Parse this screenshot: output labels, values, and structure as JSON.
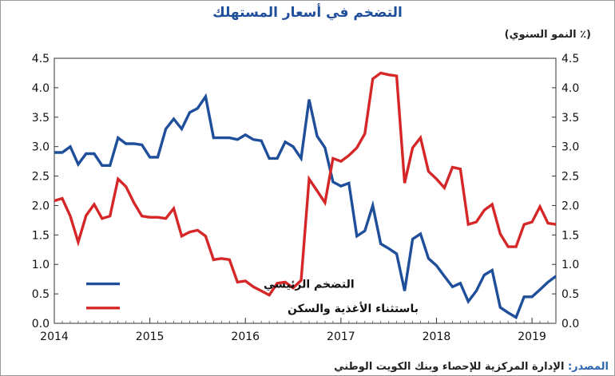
{
  "title": "التضخم في أسعار المستهلك",
  "unit_label": "(٪ النمو السنوي)",
  "source_label": "المصدر:",
  "source_text": "الإدارة المركزية للإحصاء وبنك الكويت الوطني",
  "colors": {
    "headline": "#1f4e9a",
    "core": "#d62728",
    "title": "#1f4e9a"
  },
  "chart_data": {
    "type": "line",
    "title": "التضخم في أسعار المستهلك",
    "ylabel": "(٪ النمو السنوي)",
    "xlim": [
      2014,
      2019.25
    ],
    "ylim": [
      0,
      4.5
    ],
    "y_ticks": [
      "0.0",
      "0.5",
      "1.0",
      "1.5",
      "2.0",
      "2.5",
      "3.0",
      "3.5",
      "4.0",
      "4.5"
    ],
    "x_ticks": [
      "2014",
      "2015",
      "2016",
      "2017",
      "2018",
      "2019"
    ],
    "dual_y_axis": true,
    "grid": false,
    "legend_position": "bottom-left",
    "series": [
      {
        "name": "التضخم الرئيسي",
        "color": "#1f4e9a",
        "x": [
          2014.0,
          2014.083,
          2014.167,
          2014.25,
          2014.333,
          2014.417,
          2014.5,
          2014.583,
          2014.667,
          2014.75,
          2014.833,
          2014.917,
          2015.0,
          2015.083,
          2015.167,
          2015.25,
          2015.333,
          2015.417,
          2015.5,
          2015.583,
          2015.667,
          2015.75,
          2015.833,
          2015.917,
          2016.0,
          2016.083,
          2016.167,
          2016.25,
          2016.333,
          2016.417,
          2016.5,
          2016.583,
          2016.667,
          2016.75,
          2016.833,
          2016.917,
          2017.0,
          2017.083,
          2017.167,
          2017.25,
          2017.333,
          2017.417,
          2017.5,
          2017.583,
          2017.667,
          2017.75,
          2017.833,
          2017.917,
          2018.0,
          2018.083,
          2018.167,
          2018.25,
          2018.333,
          2018.417,
          2018.5,
          2018.583,
          2018.667,
          2018.75,
          2018.833,
          2018.917,
          2019.0,
          2019.083,
          2019.167,
          2019.25
        ],
        "y": [
          2.9,
          2.9,
          3.0,
          2.7,
          2.88,
          2.88,
          2.68,
          2.68,
          3.15,
          3.05,
          3.05,
          3.03,
          2.82,
          2.82,
          3.3,
          3.47,
          3.3,
          3.58,
          3.65,
          3.85,
          3.15,
          3.15,
          3.15,
          3.12,
          3.2,
          3.12,
          3.1,
          2.8,
          2.8,
          3.08,
          3.0,
          2.8,
          3.8,
          3.18,
          2.98,
          2.4,
          2.33,
          2.38,
          1.48,
          1.57,
          2.0,
          1.35,
          1.27,
          1.18,
          0.55,
          1.43,
          1.52,
          1.1,
          0.98,
          0.8,
          0.62,
          0.68,
          0.37,
          0.55,
          0.82,
          0.9,
          0.27,
          0.18,
          0.1,
          0.45,
          0.45,
          0.57,
          0.7,
          0.8
        ]
      },
      {
        "name": "باستثناء الأغذية والسكن",
        "color": "#d62728",
        "x": [
          2014.0,
          2014.083,
          2014.167,
          2014.25,
          2014.333,
          2014.417,
          2014.5,
          2014.583,
          2014.667,
          2014.75,
          2014.833,
          2014.917,
          2015.0,
          2015.083,
          2015.167,
          2015.25,
          2015.333,
          2015.417,
          2015.5,
          2015.583,
          2015.667,
          2015.75,
          2015.833,
          2015.917,
          2016.0,
          2016.083,
          2016.167,
          2016.25,
          2016.333,
          2016.417,
          2016.5,
          2016.583,
          2016.667,
          2016.75,
          2016.833,
          2016.917,
          2017.0,
          2017.083,
          2017.167,
          2017.25,
          2017.333,
          2017.417,
          2017.5,
          2017.583,
          2017.667,
          2017.75,
          2017.833,
          2017.917,
          2018.0,
          2018.083,
          2018.167,
          2018.25,
          2018.333,
          2018.417,
          2018.5,
          2018.583,
          2018.667,
          2018.75,
          2018.833,
          2018.917,
          2019.0,
          2019.083,
          2019.167,
          2019.25
        ],
        "y": [
          2.08,
          2.12,
          1.82,
          1.38,
          1.83,
          2.02,
          1.78,
          1.82,
          2.45,
          2.32,
          2.05,
          1.82,
          1.8,
          1.8,
          1.78,
          1.95,
          1.48,
          1.55,
          1.58,
          1.48,
          1.08,
          1.1,
          1.08,
          0.7,
          0.72,
          0.62,
          0.55,
          0.48,
          0.68,
          0.7,
          0.6,
          0.73,
          2.45,
          2.25,
          2.05,
          2.8,
          2.75,
          2.85,
          2.98,
          3.22,
          4.15,
          4.25,
          4.22,
          4.2,
          2.38,
          2.98,
          3.15,
          2.58,
          2.45,
          2.3,
          2.65,
          2.62,
          1.68,
          1.72,
          1.92,
          2.02,
          1.52,
          1.3,
          1.3,
          1.68,
          1.72,
          1.98,
          1.7,
          1.68
        ]
      }
    ]
  }
}
